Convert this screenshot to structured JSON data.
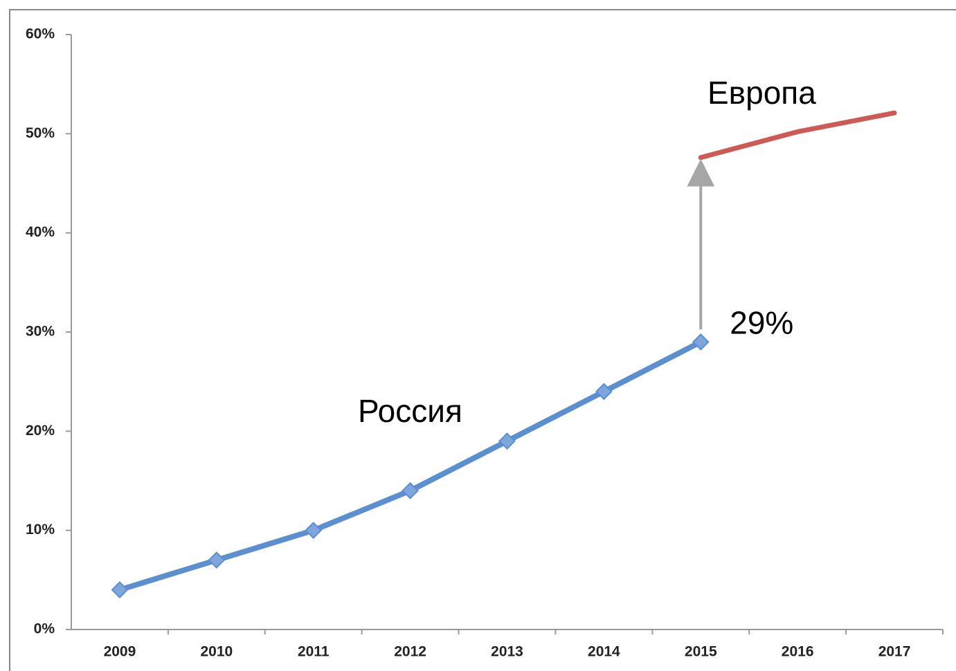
{
  "chart_data": {
    "type": "line",
    "categories": [
      "2009",
      "2010",
      "2011",
      "2012",
      "2013",
      "2014",
      "2015",
      "2016",
      "2017"
    ],
    "series": [
      {
        "name": "Россия",
        "color": "#5b8fd0",
        "values": [
          4,
          7,
          10,
          14,
          19,
          24,
          29,
          null,
          null
        ],
        "value_labels": [
          null,
          null,
          null,
          null,
          null,
          null,
          "29%",
          null,
          null
        ]
      },
      {
        "name": "Европа",
        "color": "#cc5a55",
        "values": [
          null,
          null,
          null,
          null,
          null,
          null,
          47.6,
          50.2,
          52.1
        ]
      }
    ],
    "ylim": [
      0,
      60
    ],
    "yticks": [
      {
        "value": 0,
        "label": "0%"
      },
      {
        "value": 10,
        "label": "10%"
      },
      {
        "value": 20,
        "label": "20%"
      },
      {
        "value": 30,
        "label": "30%"
      },
      {
        "value": 40,
        "label": "40%"
      },
      {
        "value": 50,
        "label": "50%"
      },
      {
        "value": 60,
        "label": "60%"
      }
    ],
    "grid": false
  }
}
